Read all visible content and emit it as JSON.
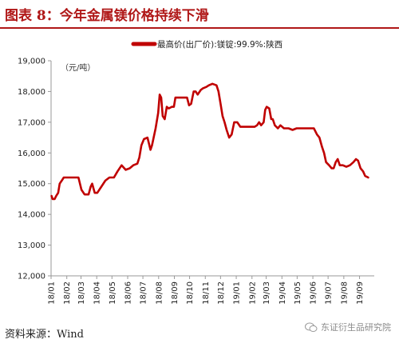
{
  "figure_title": "图表 8：今年金属镁价格持续下滑",
  "source": "资料来源：Wind",
  "watermark": "东证衍生品研究院",
  "chart_data": {
    "type": "line",
    "title": "",
    "xlabel": "",
    "ylabel": "",
    "unit_label": "（元/吨）",
    "legend": {
      "position": "top-center"
    },
    "ylim": [
      12000,
      19000
    ],
    "yticks": [
      12000,
      13000,
      14000,
      15000,
      16000,
      17000,
      18000,
      19000
    ],
    "yticklabels": [
      "12,000",
      "13,000",
      "14,000",
      "15,000",
      "16,000",
      "17,000",
      "18,000",
      "19,000"
    ],
    "xlim": [
      "2018-01-01",
      "2019-09-30"
    ],
    "xticks": [
      "2018-01-01",
      "2018-02-01",
      "2018-03-01",
      "2018-04-01",
      "2018-05-01",
      "2018-06-01",
      "2018-07-01",
      "2018-08-01",
      "2018-09-01",
      "2018-10-01",
      "2018-11-01",
      "2018-12-01",
      "2019-01-01",
      "2019-02-01",
      "2019-03-01",
      "2019-04-01",
      "2019-05-01",
      "2019-06-01",
      "2019-07-01",
      "2019-08-01",
      "2019-09-01"
    ],
    "xticklabels": [
      "18/01",
      "18/02",
      "18/03",
      "18/04",
      "18/05",
      "18/06",
      "18/07",
      "18/08",
      "18/09",
      "18/10",
      "18/11",
      "18/12",
      "19/01",
      "19/02",
      "19/03",
      "19/04",
      "19/05",
      "19/06",
      "19/07",
      "19/08",
      "19/09"
    ],
    "colors": {
      "series": "#c00000",
      "axis": "#999999",
      "title": "#b01717"
    },
    "series": [
      {
        "name": "最高价(出厂价):镁锭:99.9%:陕西",
        "data": [
          [
            "2018-01-02",
            14600
          ],
          [
            "2018-01-04",
            14500
          ],
          [
            "2018-01-08",
            14500
          ],
          [
            "2018-01-11",
            14600
          ],
          [
            "2018-01-15",
            14700
          ],
          [
            "2018-01-18",
            15000
          ],
          [
            "2018-01-22",
            15100
          ],
          [
            "2018-01-26",
            15200
          ],
          [
            "2018-02-05",
            15200
          ],
          [
            "2018-02-14",
            15200
          ],
          [
            "2018-02-24",
            15200
          ],
          [
            "2018-03-02",
            14800
          ],
          [
            "2018-03-08",
            14650
          ],
          [
            "2018-03-16",
            14650
          ],
          [
            "2018-03-20",
            14900
          ],
          [
            "2018-03-23",
            15000
          ],
          [
            "2018-03-28",
            14700
          ],
          [
            "2018-04-02",
            14700
          ],
          [
            "2018-04-10",
            14900
          ],
          [
            "2018-04-18",
            15100
          ],
          [
            "2018-04-26",
            15200
          ],
          [
            "2018-05-05",
            15200
          ],
          [
            "2018-05-12",
            15400
          ],
          [
            "2018-05-20",
            15600
          ],
          [
            "2018-05-28",
            15450
          ],
          [
            "2018-06-05",
            15500
          ],
          [
            "2018-06-12",
            15600
          ],
          [
            "2018-06-20",
            15650
          ],
          [
            "2018-06-24",
            15850
          ],
          [
            "2018-06-28",
            16250
          ],
          [
            "2018-07-03",
            16450
          ],
          [
            "2018-07-10",
            16500
          ],
          [
            "2018-07-16",
            16100
          ],
          [
            "2018-07-19",
            16250
          ],
          [
            "2018-07-26",
            16800
          ],
          [
            "2018-07-31",
            17300
          ],
          [
            "2018-08-03",
            17900
          ],
          [
            "2018-08-06",
            17800
          ],
          [
            "2018-08-09",
            17200
          ],
          [
            "2018-08-13",
            17100
          ],
          [
            "2018-08-17",
            17500
          ],
          [
            "2018-08-21",
            17450
          ],
          [
            "2018-08-27",
            17500
          ],
          [
            "2018-08-31",
            17500
          ],
          [
            "2018-09-03",
            17800
          ],
          [
            "2018-09-12",
            17800
          ],
          [
            "2018-09-20",
            17800
          ],
          [
            "2018-09-26",
            17800
          ],
          [
            "2018-09-30",
            17550
          ],
          [
            "2018-10-04",
            17600
          ],
          [
            "2018-10-09",
            18000
          ],
          [
            "2018-10-13",
            18000
          ],
          [
            "2018-10-17",
            17900
          ],
          [
            "2018-10-23",
            18050
          ],
          [
            "2018-10-27",
            18100
          ],
          [
            "2018-11-03",
            18150
          ],
          [
            "2018-11-08",
            18200
          ],
          [
            "2018-11-15",
            18250
          ],
          [
            "2018-11-23",
            18200
          ],
          [
            "2018-11-27",
            18000
          ],
          [
            "2018-12-01",
            17600
          ],
          [
            "2018-12-05",
            17200
          ],
          [
            "2018-12-09",
            17000
          ],
          [
            "2018-12-13",
            16750
          ],
          [
            "2018-12-18",
            16500
          ],
          [
            "2018-12-23",
            16600
          ],
          [
            "2018-12-28",
            17000
          ],
          [
            "2019-01-03",
            17000
          ],
          [
            "2019-01-09",
            16850
          ],
          [
            "2019-01-16",
            16850
          ],
          [
            "2019-01-24",
            16850
          ],
          [
            "2019-01-31",
            16850
          ],
          [
            "2019-02-06",
            16850
          ],
          [
            "2019-02-11",
            16900
          ],
          [
            "2019-02-15",
            17000
          ],
          [
            "2019-02-19",
            16900
          ],
          [
            "2019-02-24",
            17000
          ],
          [
            "2019-02-27",
            17400
          ],
          [
            "2019-03-02",
            17500
          ],
          [
            "2019-03-07",
            17450
          ],
          [
            "2019-03-11",
            17100
          ],
          [
            "2019-03-14",
            17100
          ],
          [
            "2019-03-18",
            16900
          ],
          [
            "2019-03-24",
            16800
          ],
          [
            "2019-03-29",
            16900
          ],
          [
            "2019-04-05",
            16800
          ],
          [
            "2019-04-14",
            16800
          ],
          [
            "2019-04-22",
            16750
          ],
          [
            "2019-04-30",
            16800
          ],
          [
            "2019-05-06",
            16800
          ],
          [
            "2019-05-14",
            16800
          ],
          [
            "2019-05-22",
            16800
          ],
          [
            "2019-05-29",
            16800
          ],
          [
            "2019-06-03",
            16800
          ],
          [
            "2019-06-09",
            16600
          ],
          [
            "2019-06-14",
            16500
          ],
          [
            "2019-06-19",
            16200
          ],
          [
            "2019-06-23",
            16000
          ],
          [
            "2019-06-27",
            15700
          ],
          [
            "2019-07-03",
            15600
          ],
          [
            "2019-07-08",
            15500
          ],
          [
            "2019-07-12",
            15500
          ],
          [
            "2019-07-16",
            15700
          ],
          [
            "2019-07-20",
            15800
          ],
          [
            "2019-07-24",
            15600
          ],
          [
            "2019-07-30",
            15600
          ],
          [
            "2019-08-06",
            15550
          ],
          [
            "2019-08-13",
            15600
          ],
          [
            "2019-08-20",
            15700
          ],
          [
            "2019-08-25",
            15800
          ],
          [
            "2019-08-29",
            15750
          ],
          [
            "2019-09-03",
            15500
          ],
          [
            "2019-09-08",
            15400
          ],
          [
            "2019-09-12",
            15250
          ],
          [
            "2019-09-18",
            15200
          ]
        ]
      }
    ]
  }
}
